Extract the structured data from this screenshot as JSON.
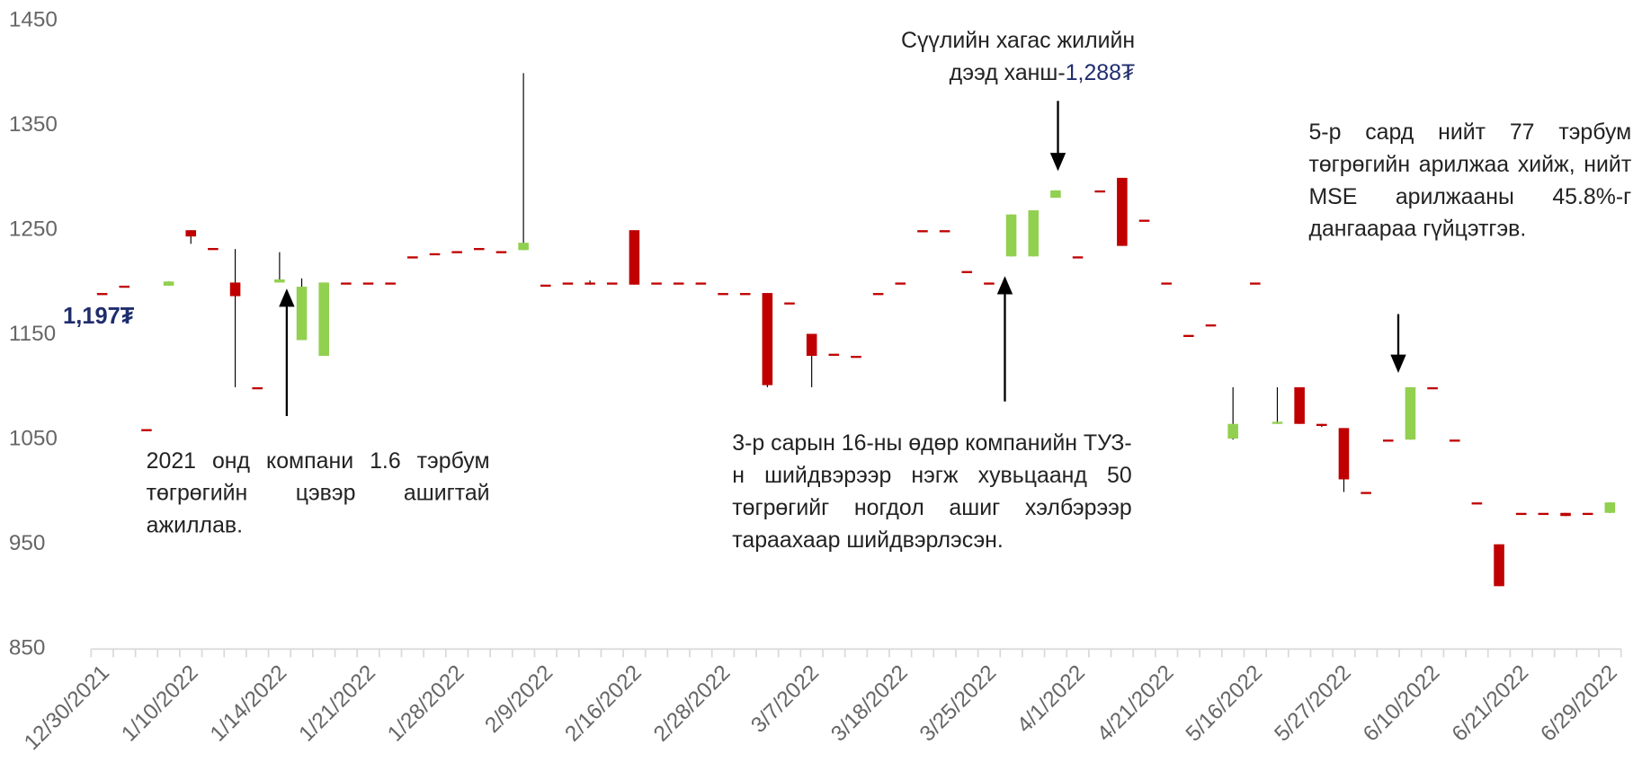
{
  "chart_data": {
    "type": "candlestick",
    "categories": [
      "12/30/2021",
      null,
      null,
      null,
      "1/10/2022",
      null,
      null,
      null,
      "1/14/2022",
      null,
      null,
      null,
      "1/21/2022",
      null,
      null,
      null,
      "1/28/2022",
      null,
      null,
      null,
      "2/9/2022",
      null,
      null,
      null,
      "2/16/2022",
      null,
      null,
      null,
      "2/28/2022",
      null,
      null,
      null,
      "3/7/2022",
      null,
      null,
      null,
      "3/18/2022",
      null,
      null,
      null,
      "3/25/2022",
      null,
      null,
      null,
      "4/1/2022",
      null,
      null,
      null,
      "4/21/2022",
      null,
      null,
      null,
      "5/16/2022",
      null,
      null,
      null,
      "5/27/2022",
      null,
      null,
      null,
      "6/10/2022",
      null,
      null,
      null,
      "6/21/2022",
      null,
      null,
      null,
      "6/29/2022"
    ],
    "open": [
      1190,
      1197,
      1060,
      1197,
      1250,
      1233,
      1200,
      1100,
      1200,
      1145,
      1130,
      1200,
      1200,
      1200,
      1225,
      1228,
      1230,
      1233,
      1230,
      1231,
      1198,
      1200,
      1200,
      1200,
      1250,
      1200,
      1200,
      1200,
      1190,
      1190,
      1190,
      1181,
      1151,
      1132,
      1130,
      1190,
      1200,
      1250,
      1250,
      1211,
      1200,
      1225,
      1225,
      1281,
      1225,
      1288,
      1300,
      1260,
      1200,
      1150,
      1160,
      1051,
      1200,
      1065,
      1100,
      1065,
      1061,
      1000,
      1050,
      1050,
      1100,
      1050,
      990,
      950,
      980,
      980,
      980,
      980,
      980
    ],
    "high": [
      1190,
      1197,
      1060,
      1201,
      1250,
      1233,
      1232,
      1100,
      1229,
      1204,
      1200,
      1200,
      1200,
      1200,
      1225,
      1228,
      1230,
      1233,
      1230,
      1400,
      1198,
      1200,
      1202,
      1200,
      1250,
      1200,
      1200,
      1200,
      1190,
      1190,
      1190,
      1181,
      1151,
      1132,
      1130,
      1190,
      1200,
      1250,
      1250,
      1211,
      1200,
      1265,
      1269,
      1288,
      1225,
      1288,
      1300,
      1260,
      1200,
      1150,
      1160,
      1100,
      1200,
      1100,
      1100,
      1065,
      1061,
      1000,
      1050,
      1100,
      1100,
      1050,
      990,
      950,
      980,
      980,
      980,
      980,
      990
    ],
    "low": [
      1190,
      1197,
      1060,
      1197,
      1237,
      1233,
      1100,
      1100,
      1200,
      1145,
      1130,
      1200,
      1200,
      1200,
      1225,
      1228,
      1230,
      1233,
      1230,
      1231,
      1198,
      1200,
      1198,
      1200,
      1198,
      1200,
      1200,
      1200,
      1190,
      1190,
      1100,
      1181,
      1100,
      1132,
      1130,
      1190,
      1200,
      1250,
      1250,
      1211,
      1200,
      1225,
      1225,
      1281,
      1225,
      1288,
      1235,
      1260,
      1200,
      1150,
      1160,
      1050,
      1200,
      1065,
      1065,
      1062,
      1000,
      1000,
      1050,
      1050,
      1100,
      1050,
      990,
      910,
      980,
      980,
      977,
      980,
      980
    ],
    "close": [
      1190,
      1197,
      1060,
      1201,
      1244,
      1233,
      1187,
      1100,
      1203,
      1196,
      1200,
      1200,
      1200,
      1200,
      1225,
      1228,
      1230,
      1233,
      1230,
      1238,
      1198,
      1200,
      1200,
      1200,
      1198,
      1200,
      1200,
      1200,
      1190,
      1190,
      1102,
      1181,
      1130,
      1132,
      1130,
      1190,
      1200,
      1250,
      1250,
      1211,
      1200,
      1265,
      1269,
      1288,
      1225,
      1288,
      1235,
      1260,
      1200,
      1150,
      1160,
      1065,
      1200,
      1067,
      1065,
      1065,
      1012,
      1000,
      1050,
      1100,
      1100,
      1050,
      990,
      910,
      980,
      980,
      977,
      980,
      990
    ],
    "up_color": "#92d050",
    "down_color": "#c00000",
    "ylim": [
      850,
      1450
    ],
    "yticks": [
      850,
      950,
      1050,
      1150,
      1250,
      1350,
      1450
    ],
    "annotations": {
      "low_label": "1,197₮",
      "note_2021": "2021 онд компани 1.6 тэрбум төгрөгийн цэвэр ашигтай ажиллав.",
      "note_dividend": "3-р сарын 16-ны өдөр компанийн ТУЗ-н шийдвэрээр нэгж хувьцаанд 50 төгрөгийг ногдол ашиг хэлбэрээр тараахаар шийдвэрлэсэн.",
      "high_line1": "Сүүлийн хагас жилийн",
      "high_line2": "дээд ханш-",
      "high_value": "1,288₮",
      "note_may": "5-р сард нийт 77 тэрбум төгрөгийн арилжаа хийж, нийт MSE арилжааны 45.8%-г дангаараа гүйцэтгэв."
    }
  }
}
